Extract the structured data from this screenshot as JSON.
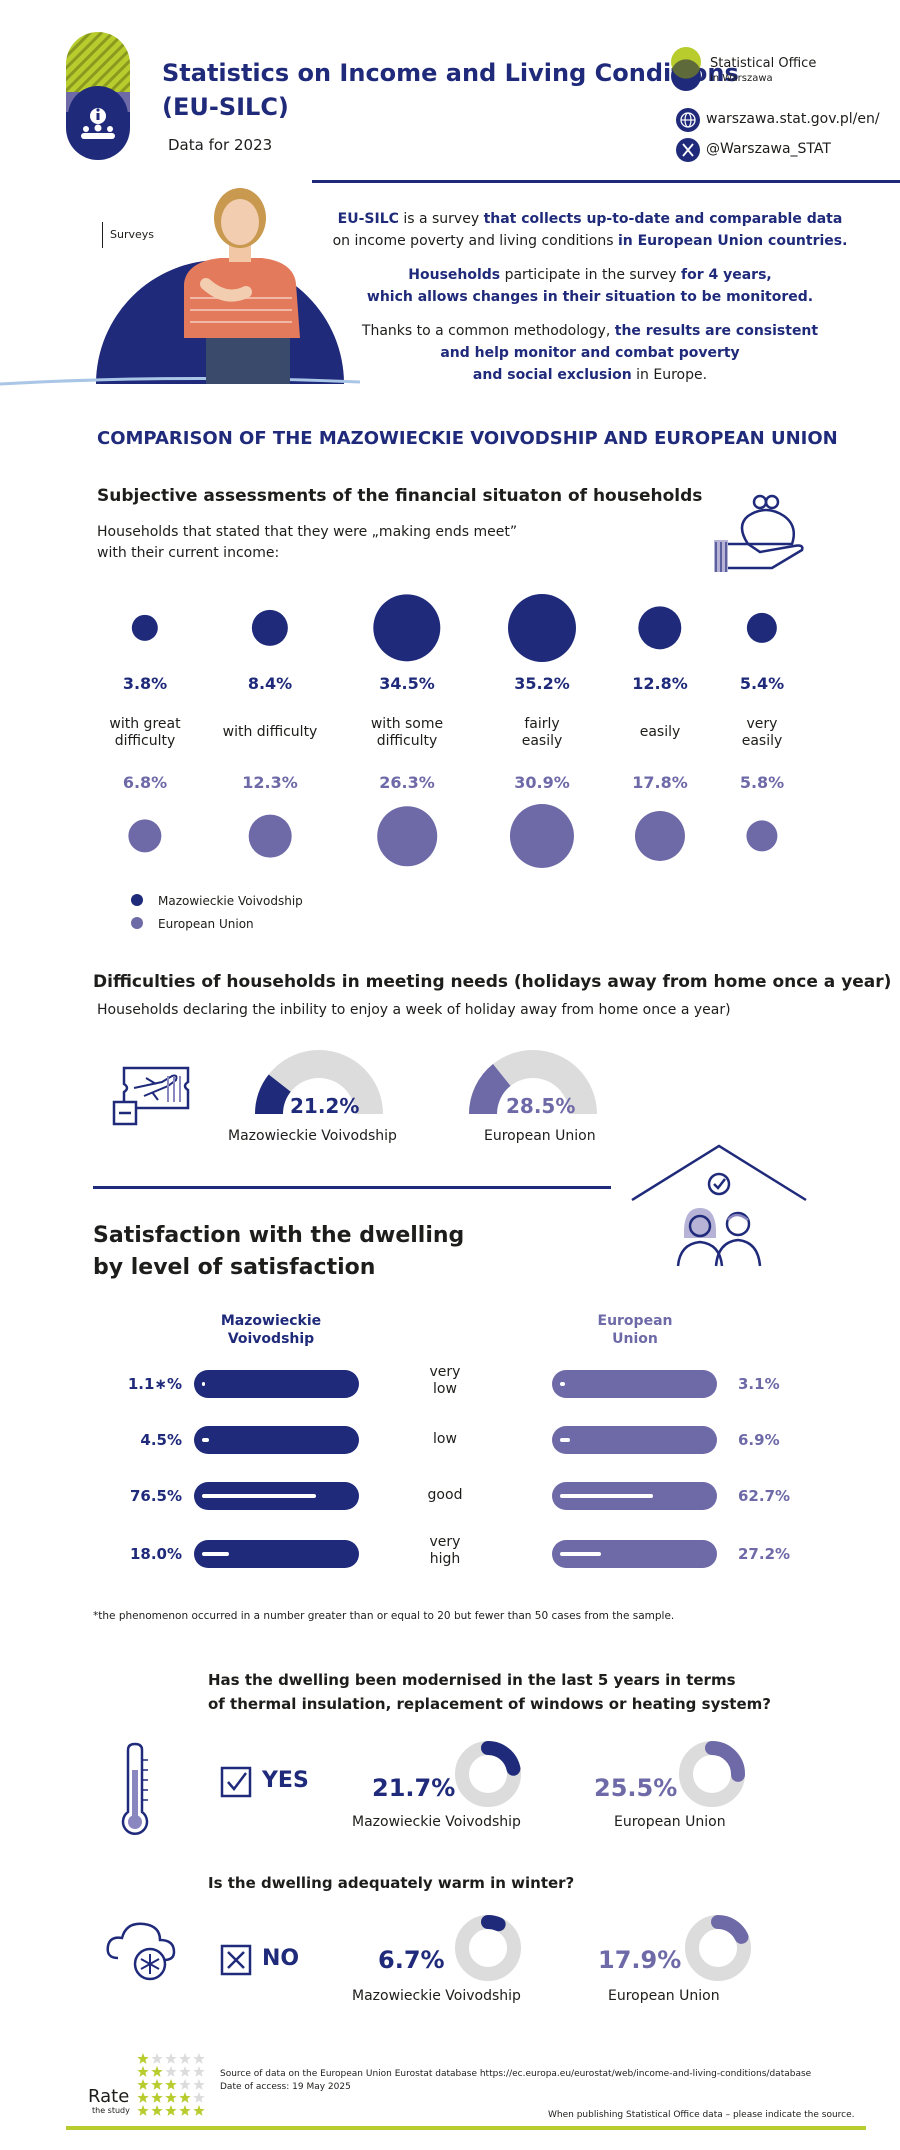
{
  "header": {
    "title_line1": "Statistics on Income and Living Conditions",
    "title_line2": "(EU-SILC)",
    "subtitle": "Data for 2023",
    "org_line1": "Statistical Office",
    "org_line2": "in Warszawa",
    "website": "warszawa.stat.gov.pl/en/",
    "social": "@Warszawa_STAT"
  },
  "intro": {
    "tag": "Surveys",
    "p1a": "EU-SILC",
    "p1b": " is a survey ",
    "p1c": "that collects up-to-date and comparable data",
    "p1d": "on income poverty and living conditions ",
    "p1e": "in European Union countries.",
    "p2a": "Households",
    "p2b": " participate in the survey ",
    "p2c": "for 4 years,",
    "p2d": "which allows changes in their situation to be monitored.",
    "p3a": "Thanks to a common methodology, ",
    "p3b": "the results are consistent",
    "p3c": "and help monitor and combat poverty",
    "p3d": "and social exclusion",
    "p3e": " in Europe."
  },
  "comparison_title": "COMPARISON OF THE MAZOWIECKIE VOIVODSHIP AND EUROPEAN UNION",
  "ends_meet": {
    "title": "Subjective assessments of the financial situaton of households",
    "desc_line1": "Households that stated that they were „making ends meet”",
    "desc_line2": "with their current income:",
    "categories": [
      {
        "l1": "with great",
        "l2": "difficulty",
        "maz": "3.8%",
        "eu": "6.8%",
        "maz_v": 3.8,
        "eu_v": 6.8
      },
      {
        "l1": "with difficulty",
        "l2": "",
        "maz": "8.4%",
        "eu": "12.3%",
        "maz_v": 8.4,
        "eu_v": 12.3
      },
      {
        "l1": "with some",
        "l2": "difficulty",
        "maz": "34.5%",
        "eu": "26.3%",
        "maz_v": 34.5,
        "eu_v": 26.3
      },
      {
        "l1": "fairly",
        "l2": "easily",
        "maz": "35.2%",
        "eu": "30.9%",
        "maz_v": 35.2,
        "eu_v": 30.9
      },
      {
        "l1": "easily",
        "l2": "",
        "maz": "12.8%",
        "eu": "17.8%",
        "maz_v": 12.8,
        "eu_v": 17.8
      },
      {
        "l1": "very",
        "l2": "easily",
        "maz": "5.4%",
        "eu": "5.8%",
        "maz_v": 5.4,
        "eu_v": 5.8
      }
    ],
    "legend_maz": "Mazowieckie Voivodship",
    "legend_eu": "European Union"
  },
  "holidays": {
    "title": "Difficulties of households in meeting needs (holidays away from home once a year)",
    "desc": "Households declaring the inbility to enjoy a week of holiday away from home once a year)",
    "maz_value": "21.2%",
    "maz_v": 21.2,
    "maz_label": "Mazowieckie Voivodship",
    "eu_value": "28.5%",
    "eu_v": 28.5,
    "eu_label": "European Union"
  },
  "satisfaction": {
    "title_line1": "Satisfaction with the dwelling",
    "title_line2": "by level of satisfaction",
    "maz_head1": "Mazowieckie",
    "maz_head2": "Voivodship",
    "eu_head1": "European",
    "eu_head2": "Union",
    "rows": [
      {
        "l1": "very",
        "l2": "low",
        "maz": "1.1∗%",
        "eu": "3.1%",
        "maz_v": 1.1,
        "eu_v": 3.1
      },
      {
        "l1": "low",
        "l2": "",
        "maz": "4.5%",
        "eu": "6.9%",
        "maz_v": 4.5,
        "eu_v": 6.9
      },
      {
        "l1": "good",
        "l2": "",
        "maz": "76.5%",
        "eu": "62.7%",
        "maz_v": 76.5,
        "eu_v": 62.7
      },
      {
        "l1": "very",
        "l2": "high",
        "maz": "18.0%",
        "eu": "27.2%",
        "maz_v": 18.0,
        "eu_v": 27.2
      }
    ],
    "footnote": "*the phenomenon occurred in a number greater than or equal to 20 but fewer than 50 cases from the sample."
  },
  "modernised": {
    "q_line1": "Has the dwelling been modernised in the last 5 years in terms",
    "q_line2": "of thermal insulation, replacement of windows or heating system?",
    "answer": "YES",
    "maz_value": "21.7%",
    "maz_v": 21.7,
    "maz_label": "Mazowieckie Voivodship",
    "eu_value": "25.5%",
    "eu_v": 25.5,
    "eu_label": "European Union"
  },
  "warm": {
    "question": "Is the dwelling adequately warm in winter?",
    "answer": "NO",
    "maz_value": "6.7%",
    "maz_v": 6.7,
    "maz_label": "Mazowieckie Voivodship",
    "eu_value": "17.9%",
    "eu_v": 17.9,
    "eu_label": "European Union"
  },
  "footer": {
    "rate": "Rate",
    "rate_sub": "the study",
    "source": "Source of data on the European Union Eurostat database https://ec.europa.eu/eurostat/web/income-and-living-conditions/database",
    "access": "Date of access: 19 May 2025",
    "publish": "When publishing Statistical Office data – please indicate the source."
  },
  "colors": {
    "navy": "#1f2a7a",
    "lavender": "#6e6aa8",
    "lime": "#b8cc2e",
    "grey": "#dcdcdc"
  }
}
